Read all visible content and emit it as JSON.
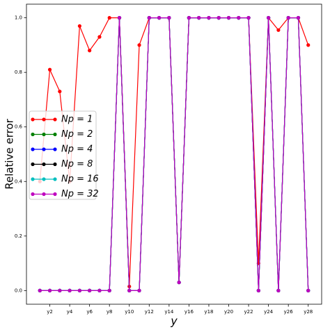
{
  "chart_data": {
    "type": "line",
    "xlabel": "y",
    "ylabel": "Relative error",
    "categories": [
      null,
      "y2",
      null,
      "y4",
      null,
      "y6",
      null,
      "y8",
      null,
      "y10",
      null,
      "y12",
      null,
      "y14",
      null,
      "y16",
      null,
      "y18",
      null,
      "y20",
      null,
      "y22",
      null,
      "y24",
      null,
      "y26",
      null,
      "y28"
    ],
    "series": [
      {
        "name": "Np = 1",
        "color": "#ff0000",
        "values": [
          0.4,
          0.81,
          0.73,
          0.4,
          0.97,
          0.88,
          0.93,
          1.0,
          1.0,
          0.015,
          0.9,
          1.0,
          1.0,
          1.0,
          0.03,
          1.0,
          1.0,
          1.0,
          1.0,
          1.0,
          1.0,
          1.0,
          0.1,
          1.0,
          0.955,
          1.0,
          1.0,
          0.9
        ]
      },
      {
        "name": "Np = 2",
        "color": "#008000",
        "values": [
          0,
          0,
          0,
          0,
          0,
          0,
          0,
          0,
          1.0,
          0,
          0,
          1.0,
          1.0,
          1.0,
          0.03,
          1.0,
          1.0,
          1.0,
          1.0,
          1.0,
          1.0,
          1.0,
          0,
          1.0,
          0,
          1.0,
          1.0,
          0
        ]
      },
      {
        "name": "Np = 4",
        "color": "#0000ff",
        "values": [
          0,
          0,
          0,
          0,
          0,
          0,
          0,
          0,
          1.0,
          0,
          0,
          1.0,
          1.0,
          1.0,
          0.03,
          1.0,
          1.0,
          1.0,
          1.0,
          1.0,
          1.0,
          1.0,
          0,
          1.0,
          0,
          1.0,
          1.0,
          0
        ]
      },
      {
        "name": "Np = 8",
        "color": "#000000",
        "values": [
          0,
          0,
          0,
          0,
          0,
          0,
          0,
          0,
          1.0,
          0,
          0,
          1.0,
          1.0,
          1.0,
          0.03,
          1.0,
          1.0,
          1.0,
          1.0,
          1.0,
          1.0,
          1.0,
          0,
          1.0,
          0,
          1.0,
          1.0,
          0
        ]
      },
      {
        "name": "Np = 16",
        "color": "#00bfbf",
        "values": [
          0,
          0,
          0,
          0,
          0,
          0,
          0,
          0,
          1.0,
          0,
          0,
          1.0,
          1.0,
          1.0,
          0.03,
          1.0,
          1.0,
          1.0,
          1.0,
          1.0,
          1.0,
          1.0,
          0,
          1.0,
          0,
          1.0,
          1.0,
          0
        ]
      },
      {
        "name": "Np = 32",
        "color": "#bf00bf",
        "values": [
          0,
          0,
          0,
          0,
          0,
          0,
          0,
          0,
          1.0,
          0,
          0,
          1.0,
          1.0,
          1.0,
          0.03,
          1.0,
          1.0,
          1.0,
          1.0,
          1.0,
          1.0,
          1.0,
          0,
          1.0,
          0,
          1.0,
          1.0,
          0
        ]
      }
    ],
    "ylim": [
      -0.05,
      1.05
    ],
    "yticks": [
      {
        "value": 0,
        "label": "0.0"
      },
      0.2,
      0.4,
      0.6,
      0.8,
      {
        "value": 1,
        "label": "1.0"
      }
    ],
    "legend": "center-left"
  }
}
